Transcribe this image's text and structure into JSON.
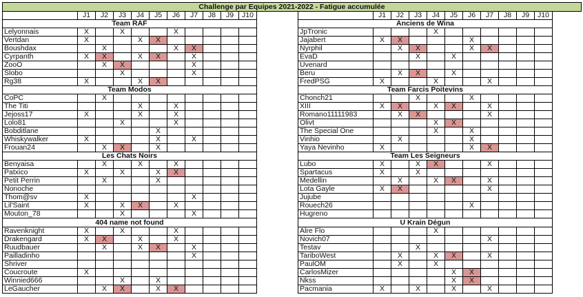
{
  "title": "Challenge par Equipes 2021-2022 - Fatigue accumulée",
  "columns": [
    "J1",
    "J2",
    "J3",
    "J4",
    "J5",
    "J6",
    "J7",
    "J8",
    "J9",
    "J10"
  ],
  "mark": "X",
  "colors": {
    "header_bg": "#c4d79b",
    "fatigue_bg": "#da9694"
  },
  "left": {
    "groups": [
      {
        "team": "Team RAF",
        "rows": [
          {
            "name": "Lelyonnais",
            "x": [
              1,
              3,
              6
            ],
            "fatigue": []
          },
          {
            "name": "Vertdan",
            "x": [
              1,
              4,
              5
            ],
            "fatigue": [
              5
            ]
          },
          {
            "name": "Boushdax",
            "x": [
              2,
              6,
              7
            ],
            "fatigue": [
              7
            ]
          },
          {
            "name": "Cyrpanth",
            "x": [
              1,
              2,
              4,
              5,
              7
            ],
            "fatigue": [
              2,
              5
            ]
          },
          {
            "name": "ZooO",
            "x": [
              2,
              3,
              7
            ],
            "fatigue": [
              3
            ]
          },
          {
            "name": "Slobo",
            "x": [
              3,
              7
            ],
            "fatigue": []
          },
          {
            "name": "Rg38",
            "x": [
              1,
              4,
              5
            ],
            "fatigue": [
              5
            ]
          }
        ]
      },
      {
        "team": "Team Modos",
        "rows": [
          {
            "name": "CoPC",
            "x": [
              2
            ],
            "fatigue": []
          },
          {
            "name": "The Titi",
            "x": [
              4,
              6
            ],
            "fatigue": []
          },
          {
            "name": "Jejoss17",
            "x": [
              1,
              4,
              6
            ],
            "fatigue": []
          },
          {
            "name": "Lolo81",
            "x": [
              3,
              6
            ],
            "fatigue": []
          },
          {
            "name": "Bobditlane",
            "x": [
              5
            ],
            "fatigue": []
          },
          {
            "name": "Whiskywalker",
            "x": [
              1,
              5,
              7
            ],
            "fatigue": []
          },
          {
            "name": "Frouan24",
            "x": [
              2,
              3,
              5
            ],
            "fatigue": [
              3
            ]
          }
        ]
      },
      {
        "team": "Les Chats Noirs",
        "rows": [
          {
            "name": "Benyaisa",
            "x": [
              2,
              4,
              6
            ],
            "fatigue": []
          },
          {
            "name": "Patxico",
            "x": [
              1,
              3,
              5,
              6
            ],
            "fatigue": [
              6
            ]
          },
          {
            "name": "Petit Perrin",
            "x": [
              2,
              5
            ],
            "fatigue": []
          },
          {
            "name": "Nonoche",
            "x": [],
            "fatigue": []
          },
          {
            "name": "Thom@sv",
            "x": [
              1,
              7
            ],
            "fatigue": []
          },
          {
            "name": "Lil'Saint",
            "x": [
              1,
              3,
              4,
              6
            ],
            "fatigue": [
              4
            ]
          },
          {
            "name": "Mouton_78",
            "x": [
              3,
              7
            ],
            "fatigue": []
          }
        ]
      },
      {
        "team": "404 name not found",
        "rows": [
          {
            "name": "Ravenknight",
            "x": [
              1,
              3,
              6
            ],
            "fatigue": []
          },
          {
            "name": "Drakengard",
            "x": [
              1,
              2,
              4,
              6
            ],
            "fatigue": [
              2
            ]
          },
          {
            "name": "Ruudbauer",
            "x": [
              2,
              4,
              5,
              7
            ],
            "fatigue": [
              5
            ]
          },
          {
            "name": "Pailladinho",
            "x": [
              7
            ],
            "fatigue": []
          },
          {
            "name": "Shriver",
            "x": [],
            "fatigue": []
          },
          {
            "name": "Coucroute",
            "x": [
              1
            ],
            "fatigue": []
          },
          {
            "name": "Winnied666",
            "x": [
              3,
              5
            ],
            "fatigue": []
          },
          {
            "name": "LeGaucher",
            "x": [
              2,
              3,
              5,
              6
            ],
            "fatigue": [
              3,
              6
            ]
          }
        ]
      }
    ]
  },
  "right": {
    "groups": [
      {
        "team": "Anciens de Wina",
        "rows": [
          {
            "name": "JpTronic",
            "x": [
              4
            ],
            "fatigue": []
          },
          {
            "name": "Jajabert",
            "x": [
              1,
              2,
              6
            ],
            "fatigue": [
              2
            ]
          },
          {
            "name": "Nyrphil",
            "x": [
              2,
              3,
              6,
              7
            ],
            "fatigue": [
              3,
              7
            ]
          },
          {
            "name": "EvaD",
            "x": [
              3,
              5
            ],
            "fatigue": []
          },
          {
            "name": "Uvenard",
            "x": [],
            "fatigue": []
          },
          {
            "name": "Beru",
            "x": [
              2,
              3,
              5
            ],
            "fatigue": [
              3
            ]
          },
          {
            "name": "FredPSG",
            "x": [
              1,
              4,
              7
            ],
            "fatigue": []
          }
        ]
      },
      {
        "team": "Team Farcis Poitevins",
        "rows": [
          {
            "name": "Chonch21",
            "x": [
              3,
              6
            ],
            "fatigue": []
          },
          {
            "name": "XIII",
            "x": [
              1,
              2,
              4,
              5,
              7
            ],
            "fatigue": [
              2,
              5
            ]
          },
          {
            "name": "Romano11111983",
            "x": [
              2,
              3,
              7
            ],
            "fatigue": [
              3
            ]
          },
          {
            "name": "Olivt",
            "x": [
              4,
              5
            ],
            "fatigue": [
              5
            ]
          },
          {
            "name": "The Special One",
            "x": [
              4,
              6
            ],
            "fatigue": []
          },
          {
            "name": "Vinhio",
            "x": [
              2,
              6
            ],
            "fatigue": []
          },
          {
            "name": "Yaya Nevinho",
            "x": [
              1,
              6,
              7
            ],
            "fatigue": [
              7
            ]
          }
        ]
      },
      {
        "team": "Team Les Seigneurs",
        "rows": [
          {
            "name": "Lubo",
            "x": [
              1,
              3,
              4,
              7
            ],
            "fatigue": [
              4
            ]
          },
          {
            "name": "Spartacus",
            "x": [
              1,
              3
            ],
            "fatigue": []
          },
          {
            "name": "Medellin",
            "x": [
              2,
              4,
              5,
              7
            ],
            "fatigue": [
              5
            ]
          },
          {
            "name": "Lota Gayle",
            "x": [
              1,
              2,
              7
            ],
            "fatigue": [
              2
            ]
          },
          {
            "name": "Jujube",
            "x": [],
            "fatigue": []
          },
          {
            "name": "Rouech26",
            "x": [
              6
            ],
            "fatigue": []
          },
          {
            "name": "Hugreno",
            "x": [],
            "fatigue": []
          }
        ]
      },
      {
        "team": "U Krain Dégun",
        "rows": [
          {
            "name": "Alre Flo",
            "x": [
              4
            ],
            "fatigue": []
          },
          {
            "name": "Novich07",
            "x": [
              7
            ],
            "fatigue": []
          },
          {
            "name": "Testav",
            "x": [
              3
            ],
            "fatigue": []
          },
          {
            "name": "TariboWest",
            "x": [
              2,
              4,
              5,
              7
            ],
            "fatigue": [
              5
            ]
          },
          {
            "name": "PaulOM",
            "x": [
              2,
              4
            ],
            "fatigue": []
          },
          {
            "name": "CarlosMizer",
            "x": [
              5,
              6
            ],
            "fatigue": [
              6
            ]
          },
          {
            "name": "Nkss",
            "x": [
              5,
              6
            ],
            "fatigue": [
              6
            ]
          },
          {
            "name": "Pacmania",
            "x": [
              1,
              3,
              5,
              7
            ],
            "fatigue": []
          }
        ]
      }
    ]
  }
}
